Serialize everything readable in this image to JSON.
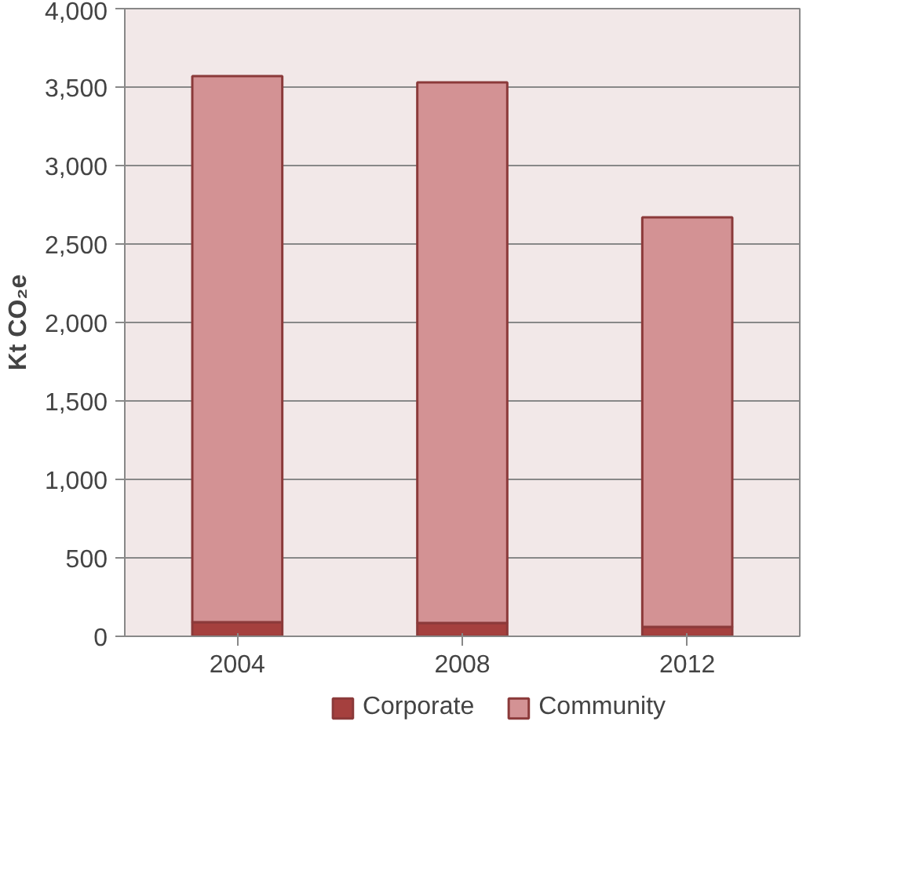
{
  "chart_data": {
    "type": "bar",
    "stacked": true,
    "ylabel": "Kt CO₂e",
    "categories": [
      "2004",
      "2008",
      "2012"
    ],
    "series": [
      {
        "name": "Corporate",
        "color": "#a5403e",
        "values": [
          90,
          85,
          60
        ]
      },
      {
        "name": "Community",
        "color": "#d39294",
        "values": [
          3480,
          3445,
          2610
        ]
      }
    ],
    "ylim": [
      0,
      4000
    ],
    "yticks": [
      0,
      500,
      {
        "value": 1000,
        "label": "1,000"
      },
      {
        "value": 1500,
        "label": "1,500"
      },
      {
        "value": 2000,
        "label": "2,000"
      },
      {
        "value": 2500,
        "label": "2,500"
      },
      {
        "value": 3000,
        "label": "3,000"
      },
      {
        "value": 3500,
        "label": "3,500"
      },
      {
        "value": 4000,
        "label": "4,000"
      }
    ],
    "grid": "y",
    "legend": "bottom"
  }
}
